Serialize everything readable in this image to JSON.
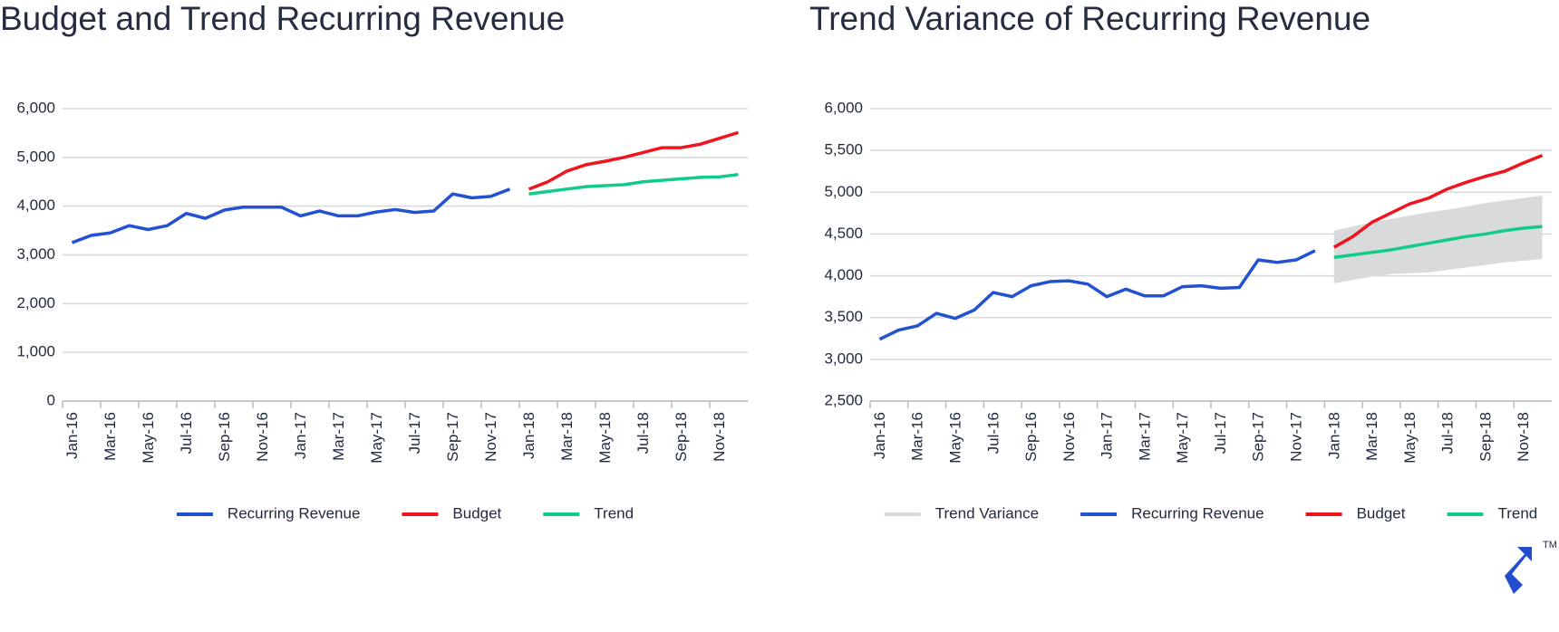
{
  "chart_data": [
    {
      "type": "line",
      "title": "Budget and Trend Recurring Revenue",
      "categories": [
        "Jan-16",
        null,
        "Mar-16",
        null,
        "May-16",
        null,
        "Jul-16",
        null,
        "Sep-16",
        null,
        "Nov-16",
        null,
        "Jan-17",
        null,
        "Mar-17",
        null,
        "May-17",
        null,
        "Jul-17",
        null,
        "Sep-17",
        null,
        "Nov-17",
        null,
        "Jan-18",
        null,
        "Mar-18",
        null,
        "May-18",
        null,
        "Jul-18",
        null,
        "Sep-18",
        null,
        "Nov-18",
        null
      ],
      "series": [
        {
          "name": "Recurring Revenue",
          "color": "#2251d1",
          "values": [
            3250,
            3400,
            3450,
            3600,
            3520,
            3600,
            3850,
            3750,
            3920,
            3980,
            3980,
            3980,
            3800,
            3900,
            3800,
            3800,
            3880,
            3930,
            3870,
            3900,
            4250,
            4170,
            4200,
            4350,
            null,
            null,
            null,
            null,
            null,
            null,
            null,
            null,
            null,
            null,
            null,
            null
          ]
        },
        {
          "name": "Budget",
          "color": "#f0141e",
          "values": [
            null,
            null,
            null,
            null,
            null,
            null,
            null,
            null,
            null,
            null,
            null,
            null,
            null,
            null,
            null,
            null,
            null,
            null,
            null,
            null,
            null,
            null,
            null,
            null,
            4350,
            4500,
            4720,
            4850,
            4920,
            5000,
            5100,
            5200,
            5200,
            5270,
            5390,
            5510
          ]
        },
        {
          "name": "Trend",
          "color": "#11cc88",
          "values": [
            null,
            null,
            null,
            null,
            null,
            null,
            null,
            null,
            null,
            null,
            null,
            null,
            null,
            null,
            null,
            null,
            null,
            null,
            null,
            null,
            null,
            null,
            null,
            null,
            4250,
            4300,
            4350,
            4400,
            4420,
            4440,
            4500,
            4530,
            4560,
            4590,
            4600,
            4650
          ]
        }
      ],
      "ylim": [
        0,
        6000
      ],
      "yticks": [
        0,
        {
          "value": 1000,
          "label": "1,000"
        },
        {
          "value": 2000,
          "label": "2,000"
        },
        {
          "value": 3000,
          "label": "3,000"
        },
        {
          "value": 4000,
          "label": "4,000"
        },
        {
          "value": 5000,
          "label": "5,000"
        },
        {
          "value": 6000,
          "label": "6,000"
        }
      ],
      "grid": true,
      "legend": "bottom"
    },
    {
      "type": "line",
      "title": "Trend Variance of Recurring Revenue",
      "categories": [
        "Jan-16",
        null,
        "Mar-16",
        null,
        "May-16",
        null,
        "Jul-16",
        null,
        "Sep-16",
        null,
        "Nov-16",
        null,
        "Jan-17",
        null,
        "Mar-17",
        null,
        "May-17",
        null,
        "Jul-17",
        null,
        "Sep-17",
        null,
        "Nov-17",
        null,
        "Jan-18",
        null,
        "Mar-18",
        null,
        "May-18",
        null,
        "Jul-18",
        null,
        "Sep-18",
        null,
        "Nov-18",
        null
      ],
      "series": [
        {
          "name": "Trend Variance",
          "color": "#d9dadc",
          "type": "band",
          "low": [
            null,
            null,
            null,
            null,
            null,
            null,
            null,
            null,
            null,
            null,
            null,
            null,
            null,
            null,
            null,
            null,
            null,
            null,
            null,
            null,
            null,
            null,
            null,
            null,
            3910,
            3950,
            3990,
            4020,
            4030,
            4040,
            4070,
            4100,
            4130,
            4160,
            4180,
            4200
          ],
          "high": [
            null,
            null,
            null,
            null,
            null,
            null,
            null,
            null,
            null,
            null,
            null,
            null,
            null,
            null,
            null,
            null,
            null,
            null,
            null,
            null,
            null,
            null,
            null,
            null,
            4540,
            4590,
            4640,
            4680,
            4720,
            4760,
            4790,
            4830,
            4870,
            4900,
            4930,
            4960
          ]
        },
        {
          "name": "Recurring Revenue",
          "color": "#2251d1",
          "values": [
            3240,
            3350,
            3400,
            3550,
            3490,
            3590,
            3800,
            3750,
            3880,
            3930,
            3940,
            3900,
            3750,
            3840,
            3760,
            3760,
            3870,
            3880,
            3850,
            3860,
            4190,
            4160,
            4190,
            4300,
            null,
            null,
            null,
            null,
            null,
            null,
            null,
            null,
            null,
            null,
            null,
            null
          ]
        },
        {
          "name": "Budget",
          "color": "#f0141e",
          "values": [
            null,
            null,
            null,
            null,
            null,
            null,
            null,
            null,
            null,
            null,
            null,
            null,
            null,
            null,
            null,
            null,
            null,
            null,
            null,
            null,
            null,
            null,
            null,
            null,
            4340,
            4470,
            4640,
            4750,
            4860,
            4930,
            5040,
            5120,
            5190,
            5250,
            5350,
            5440
          ]
        },
        {
          "name": "Trend",
          "color": "#11cc88",
          "values": [
            null,
            null,
            null,
            null,
            null,
            null,
            null,
            null,
            null,
            null,
            null,
            null,
            null,
            null,
            null,
            null,
            null,
            null,
            null,
            null,
            null,
            null,
            null,
            null,
            4220,
            4250,
            4280,
            4310,
            4350,
            4390,
            4430,
            4470,
            4500,
            4540,
            4570,
            4590
          ]
        }
      ],
      "ylim": [
        2500,
        6000
      ],
      "yticks": [
        {
          "value": 2500,
          "label": "2,500"
        },
        {
          "value": 3000,
          "label": "3,000"
        },
        {
          "value": 3500,
          "label": "3,500"
        },
        {
          "value": 4000,
          "label": "4,000"
        },
        {
          "value": 4500,
          "label": "4,500"
        },
        {
          "value": 5000,
          "label": "5,000"
        },
        {
          "value": 5500,
          "label": "5,500"
        },
        {
          "value": 6000,
          "label": "6,000"
        }
      ],
      "grid": true,
      "legend": "bottom"
    }
  ],
  "logo": {
    "mark": "TM"
  }
}
